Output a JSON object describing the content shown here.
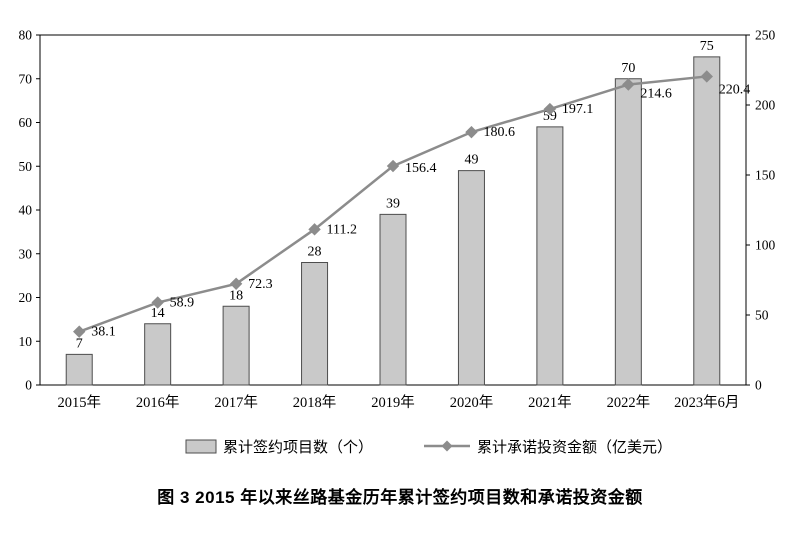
{
  "figure": {
    "caption": "图 3  2015 年以来丝路基金历年累计签约项目数和承诺投资金额"
  },
  "chart_data": {
    "type": "bar",
    "subtype": "bar+line combo, dual axis",
    "title": "图 3  2015 年以来丝路基金历年累计签约项目数和承诺投资金额",
    "categories": [
      "2015年",
      "2016年",
      "2017年",
      "2018年",
      "2019年",
      "2020年",
      "2021年",
      "2022年",
      "2023年6月"
    ],
    "series": [
      {
        "name": "累计签约项目数（个）",
        "type": "bar",
        "axis": "left",
        "values": [
          7,
          14,
          18,
          28,
          39,
          49,
          59,
          70,
          75
        ]
      },
      {
        "name": "累计承诺投资金额（亿美元）",
        "type": "line",
        "axis": "right",
        "values": [
          38.1,
          58.9,
          72.3,
          111.2,
          156.4,
          180.6,
          197.1,
          214.6,
          220.4
        ]
      }
    ],
    "left_axis": {
      "min": 0,
      "max": 80,
      "step": 10
    },
    "right_axis": {
      "min": 0,
      "max": 250,
      "step": 50
    },
    "grid": false,
    "legend_position": "bottom",
    "colors": {
      "bar_fill": "#c9c9c9",
      "bar_border": "#4d4d4d",
      "line": "#8c8c8c",
      "marker": "#8c8c8c",
      "text": "#000000",
      "axis": "#000000"
    }
  }
}
